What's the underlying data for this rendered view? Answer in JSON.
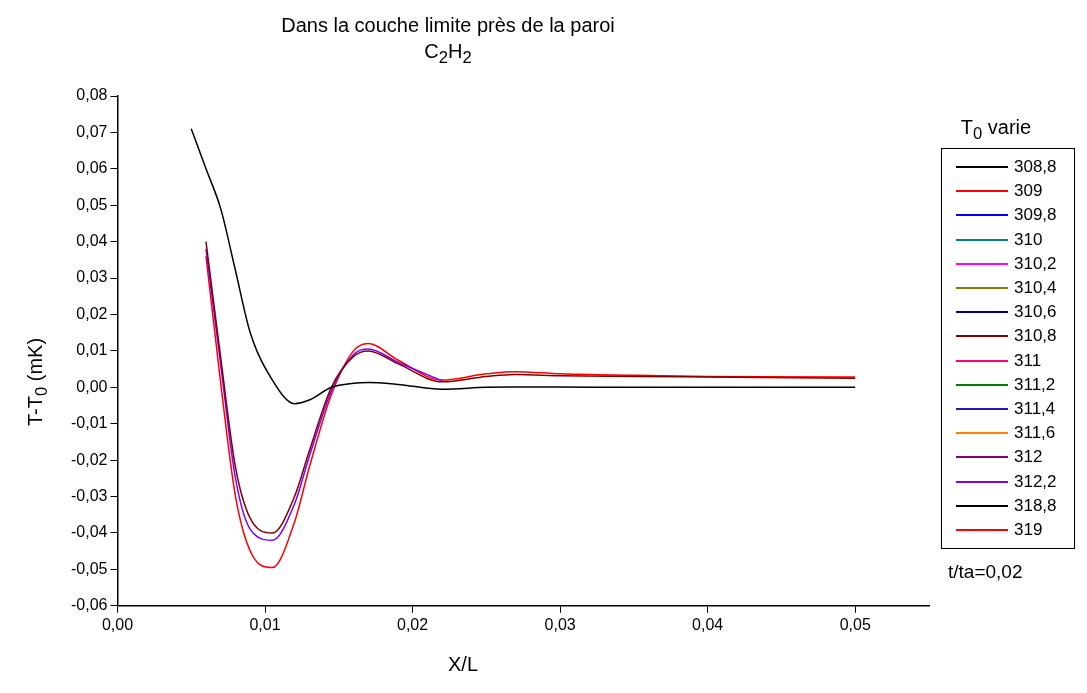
{
  "chart_data": {
    "type": "line",
    "title": "Dans la couche limite près de la paroi",
    "subtitle": "C$_{2}$H$_{2}$",
    "xlabel": "X/L",
    "ylabel": "T-T$_{0}$  (mK)",
    "legend_title": "T$_{0}$ varie",
    "legend": "right",
    "grid": false,
    "annotations": [
      "t/ta=0,02"
    ],
    "x": [
      0.005,
      0.006,
      0.007,
      0.008,
      0.009,
      0.0105,
      0.012,
      0.013,
      0.0145,
      0.016,
      0.017,
      0.019,
      0.022,
      0.025,
      0.027,
      0.03,
      0.035,
      0.04,
      0.05
    ],
    "xlim": [
      0,
      0.055
    ],
    "xticks": [
      {
        "value": 0,
        "label": "0,00"
      },
      {
        "value": 0.01,
        "label": "0,01"
      },
      {
        "value": 0.02,
        "label": "0,02"
      },
      {
        "value": 0.03,
        "label": "0,03"
      },
      {
        "value": 0.04,
        "label": "0,04"
      },
      {
        "value": 0.05,
        "label": "0,05"
      }
    ],
    "ylim": [
      -0.06,
      0.08
    ],
    "yticks": [
      {
        "value": -0.06,
        "label": "-0,06"
      },
      {
        "value": -0.05,
        "label": "-0,05"
      },
      {
        "value": -0.04,
        "label": "-0,04"
      },
      {
        "value": -0.03,
        "label": "-0,03"
      },
      {
        "value": -0.02,
        "label": "-0,02"
      },
      {
        "value": -0.01,
        "label": "-0,01"
      },
      {
        "value": 0,
        "label": "0,00"
      },
      {
        "value": 0.01,
        "label": "0,01"
      },
      {
        "value": 0.02,
        "label": "0,02"
      },
      {
        "value": 0.03,
        "label": "0,03"
      },
      {
        "value": 0.04,
        "label": "0,04"
      },
      {
        "value": 0.05,
        "label": "0,05"
      },
      {
        "value": 0.06,
        "label": "0,06"
      },
      {
        "value": 0.07,
        "label": "0,07"
      },
      {
        "value": 0.08,
        "label": "0,08"
      }
    ],
    "series": [
      {
        "name": "308,8",
        "color": "#000000",
        "values": [
          0.071,
          0.06,
          0.049,
          0.032,
          0.015,
          0.002,
          -0.0045,
          -0.0035,
          0.0,
          0.0011,
          0.0013,
          0.0008,
          -0.0005,
          0.0,
          0.0001,
          0.0001,
          0.0,
          0.0,
          0.0
        ]
      },
      {
        "name": "309",
        "color": "#ff0000",
        "values": [
          null,
          null,
          null,
          null,
          null,
          null,
          null,
          null,
          null,
          null,
          null,
          null,
          null,
          null,
          null,
          null,
          null,
          null,
          null
        ]
      },
      {
        "name": "309,8",
        "color": "#0000ff",
        "values": [
          null,
          null,
          null,
          null,
          null,
          null,
          null,
          null,
          null,
          null,
          null,
          null,
          null,
          null,
          null,
          null,
          null,
          null,
          null
        ]
      },
      {
        "name": "310",
        "color": "#008080",
        "values": [
          null,
          null,
          null,
          null,
          null,
          null,
          null,
          null,
          null,
          null,
          null,
          null,
          null,
          null,
          null,
          null,
          null,
          null,
          null
        ]
      },
      {
        "name": "310,2",
        "color": "#ff00ff",
        "values": [
          null,
          null,
          null,
          null,
          null,
          null,
          null,
          null,
          null,
          null,
          null,
          null,
          null,
          null,
          null,
          null,
          null,
          null,
          null
        ]
      },
      {
        "name": "310,4",
        "color": "#808000",
        "values": [
          null,
          null,
          null,
          null,
          null,
          null,
          null,
          null,
          null,
          null,
          null,
          null,
          null,
          null,
          null,
          null,
          null,
          null,
          null
        ]
      },
      {
        "name": "310,6",
        "color": "#000080",
        "values": [
          null,
          null,
          null,
          null,
          null,
          null,
          null,
          null,
          null,
          null,
          null,
          null,
          null,
          null,
          null,
          null,
          null,
          null,
          null
        ]
      },
      {
        "name": "310,8",
        "color": "#800000",
        "values": [
          null,
          0.04,
          0.008,
          -0.022,
          -0.036,
          -0.04,
          -0.03,
          -0.0175,
          0.0,
          0.0085,
          0.01,
          0.0065,
          0.0015,
          0.003,
          0.0035,
          0.0032,
          0.003,
          0.0028,
          0.0025
        ]
      },
      {
        "name": "311",
        "color": "#ff0080",
        "values": [
          null,
          null,
          null,
          null,
          null,
          null,
          null,
          null,
          null,
          null,
          null,
          null,
          null,
          null,
          null,
          null,
          null,
          null,
          null
        ]
      },
      {
        "name": "311,2",
        "color": "#008000",
        "values": [
          null,
          null,
          null,
          null,
          null,
          null,
          null,
          null,
          null,
          null,
          null,
          null,
          null,
          null,
          null,
          null,
          null,
          null,
          null
        ]
      },
      {
        "name": "311,4",
        "color": "#1c1cb0",
        "values": [
          null,
          null,
          null,
          null,
          null,
          null,
          null,
          null,
          null,
          null,
          null,
          null,
          null,
          null,
          null,
          null,
          null,
          null,
          null
        ]
      },
      {
        "name": "311,6",
        "color": "#ff8000",
        "values": [
          null,
          null,
          null,
          null,
          null,
          null,
          null,
          null,
          null,
          null,
          null,
          null,
          null,
          null,
          null,
          null,
          null,
          null,
          null
        ]
      },
      {
        "name": "312",
        "color": "#800080",
        "values": [
          null,
          null,
          null,
          null,
          null,
          null,
          null,
          null,
          null,
          null,
          null,
          null,
          null,
          null,
          null,
          null,
          null,
          null,
          null
        ]
      },
      {
        "name": "312,2",
        "color": "#8000ff",
        "values": [
          null,
          0.038,
          0.006,
          -0.025,
          -0.039,
          -0.042,
          -0.032,
          -0.019,
          -0.001,
          0.009,
          0.0105,
          0.0069,
          0.0018,
          null,
          null,
          null,
          null,
          null,
          null
        ]
      },
      {
        "name": "318,8",
        "color": "#000000",
        "values": [
          null,
          null,
          null,
          null,
          null,
          null,
          null,
          null,
          null,
          null,
          null,
          null,
          null,
          null,
          null,
          null,
          null,
          null,
          null
        ]
      },
      {
        "name": "319",
        "color": "#ff0000",
        "values": [
          null,
          0.036,
          0.001,
          -0.03,
          -0.045,
          -0.0495,
          -0.037,
          -0.022,
          -0.002,
          0.01,
          0.012,
          0.0075,
          0.002,
          0.0037,
          0.0043,
          0.0037,
          0.0033,
          0.003,
          0.0028
        ]
      }
    ]
  }
}
